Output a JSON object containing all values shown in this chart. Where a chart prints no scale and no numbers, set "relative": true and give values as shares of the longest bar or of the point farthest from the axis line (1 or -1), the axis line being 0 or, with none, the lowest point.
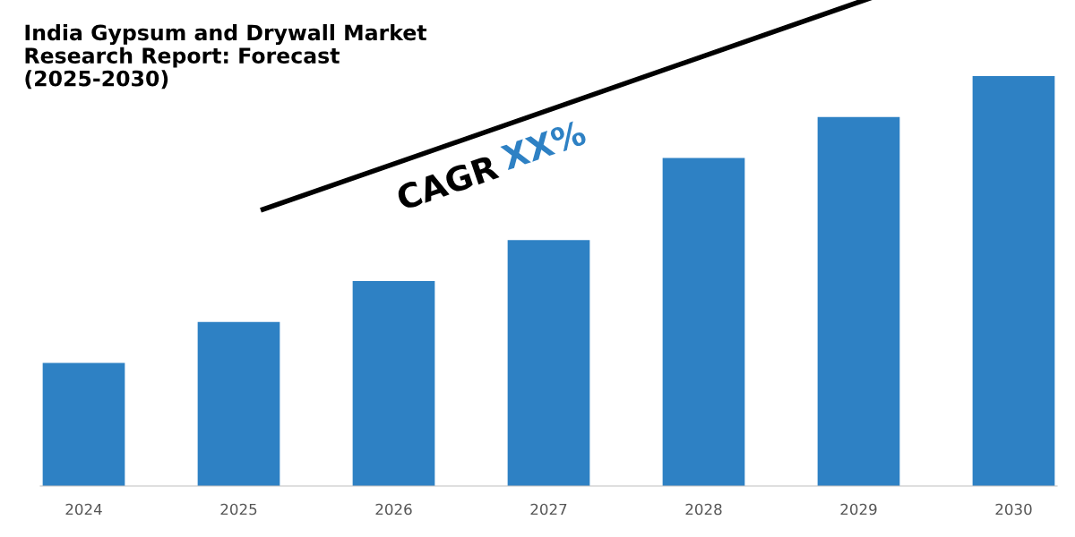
{
  "chart_data": {
    "type": "bar",
    "title": "India Gypsum and Drywall Market\nResearch Report: Forecast\n(2025-2030)",
    "categories": [
      "2024",
      "2025",
      "2026",
      "2027",
      "2028",
      "2029",
      "2030"
    ],
    "values": [
      0.3,
      0.4,
      0.5,
      0.6,
      0.8,
      0.9,
      1.0
    ],
    "color": "#2e81c4",
    "relative": true,
    "annotations": [
      "CAGR",
      "XX%"
    ]
  }
}
